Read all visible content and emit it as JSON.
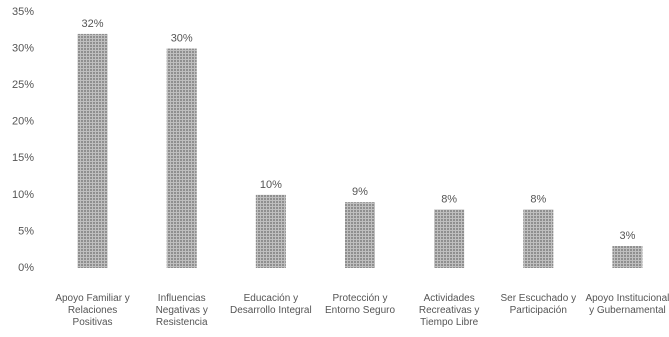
{
  "chart_data": {
    "type": "bar",
    "categories": [
      "Apoyo Familiar y Relaciones Positivas",
      "Influencias Negativas y Resistencia",
      "Educación y Desarrollo Integral",
      "Protección y Entorno Seguro",
      "Actividades Recreativas y Tiempo Libre",
      "Ser Escuchado y Participación",
      "Apoyo Institucional y Gubernamental"
    ],
    "values": [
      32,
      30,
      10,
      9,
      8,
      8,
      3
    ],
    "value_labels": [
      "32%",
      "30%",
      "10%",
      "9%",
      "8%",
      "8%",
      "3%"
    ],
    "color": "#a9a9a9",
    "ylim": [
      0,
      35
    ],
    "yticks": [
      {
        "value": 0,
        "label": "0%"
      },
      {
        "value": 5,
        "label": "5%"
      },
      {
        "value": 10,
        "label": "10%"
      },
      {
        "value": 15,
        "label": "15%"
      },
      {
        "value": 20,
        "label": "20%"
      },
      {
        "value": 25,
        "label": "25%"
      },
      {
        "value": 30,
        "label": "30%"
      },
      {
        "value": 35,
        "label": "35%"
      }
    ],
    "grid": false
  }
}
